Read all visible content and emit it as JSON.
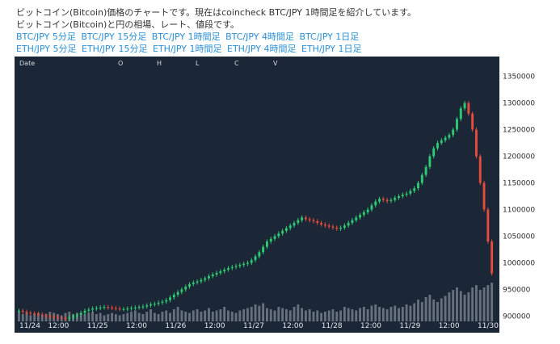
{
  "intro": {
    "line1": "ビットコイン(Bitcoin)価格のチャートです。現在はcoincheck BTC/JPY 1時間足を紹介しています。",
    "line2": "ビットコイン(Bitcoin)と円の相場、レート、値段です。",
    "btc_links": [
      "BTC/JPY 5分足",
      "BTC/JPY 15分足",
      "BTC/JPY 1時間足",
      "BTC/JPY 4時間足",
      "BTC/JPY 1日足"
    ],
    "eth_links": [
      "ETH/JPY 5分足",
      "ETH/JPY 15分足",
      "ETH/JPY 1時間足",
      "ETH/JPY 4時間足",
      "ETH/JPY 1日足"
    ]
  },
  "chart_header": {
    "date_label": "Date",
    "o_label": "O",
    "h_label": "H",
    "l_label": "L",
    "c_label": "C",
    "v_label": "V"
  },
  "colors": {
    "background": "#1b2636",
    "up": "#2ecc71",
    "down": "#e74c3c",
    "volume": "#9aa3ad",
    "link": "#2a8fd6"
  },
  "chart_data": {
    "type": "candlestick",
    "x_ticks": [
      "11/24",
      "12:00",
      "11/25",
      "12:00",
      "11/26",
      "12:00",
      "11/27",
      "12:00",
      "11/28",
      "12:00",
      "11/29",
      "12:00",
      "11/30"
    ],
    "y_ticks": [
      900000,
      950000,
      1000000,
      1050000,
      1100000,
      1150000,
      1200000,
      1250000,
      1300000,
      1350000
    ],
    "ylim": [
      890000,
      1360000
    ],
    "series_close": [
      910000,
      908000,
      906000,
      905000,
      904000,
      903000,
      901000,
      900000,
      899000,
      898000,
      897000,
      896000,
      895000,
      897000,
      900000,
      902000,
      906000,
      910000,
      912000,
      914000,
      915000,
      916000,
      917000,
      916000,
      915000,
      914000,
      913000,
      913000,
      914000,
      915000,
      916000,
      917000,
      918000,
      920000,
      922000,
      923000,
      925000,
      927000,
      930000,
      935000,
      940000,
      945000,
      950000,
      955000,
      960000,
      963000,
      965000,
      968000,
      971000,
      975000,
      978000,
      981000,
      984000,
      987000,
      990000,
      992000,
      994000,
      996000,
      998000,
      1000000,
      1005000,
      1012000,
      1020000,
      1030000,
      1040000,
      1045000,
      1050000,
      1055000,
      1060000,
      1065000,
      1070000,
      1075000,
      1080000,
      1085000,
      1082000,
      1080000,
      1078000,
      1075000,
      1072000,
      1070000,
      1068000,
      1066000,
      1064000,
      1066000,
      1070000,
      1075000,
      1080000,
      1085000,
      1090000,
      1095000,
      1100000,
      1108000,
      1115000,
      1120000,
      1118000,
      1116000,
      1118000,
      1122000,
      1125000,
      1128000,
      1130000,
      1135000,
      1140000,
      1150000,
      1165000,
      1180000,
      1200000,
      1215000,
      1225000,
      1230000,
      1235000,
      1240000,
      1250000,
      1270000,
      1290000,
      1300000,
      1280000,
      1250000,
      1200000,
      1150000,
      1100000,
      1040000,
      980000
    ],
    "volumes": [
      8,
      6,
      7,
      5,
      6,
      7,
      5,
      6,
      8,
      7,
      6,
      5,
      7,
      8,
      6,
      7,
      5,
      6,
      7,
      8,
      6,
      7,
      5,
      6,
      7,
      6,
      5,
      6,
      7,
      8,
      9,
      7,
      6,
      8,
      10,
      7,
      6,
      8,
      9,
      7,
      10,
      12,
      9,
      8,
      7,
      9,
      10,
      8,
      9,
      11,
      8,
      9,
      10,
      12,
      9,
      8,
      7,
      9,
      10,
      11,
      12,
      14,
      13,
      15,
      11,
      10,
      9,
      12,
      11,
      10,
      9,
      12,
      14,
      11,
      9,
      10,
      8,
      9,
      7,
      8,
      9,
      10,
      8,
      9,
      12,
      11,
      10,
      9,
      11,
      12,
      10,
      13,
      14,
      12,
      11,
      10,
      12,
      13,
      11,
      12,
      14,
      13,
      15,
      18,
      16,
      20,
      22,
      18,
      16,
      19,
      21,
      24,
      26,
      28,
      25,
      22,
      24,
      28,
      30,
      26,
      28,
      30,
      32
    ]
  }
}
